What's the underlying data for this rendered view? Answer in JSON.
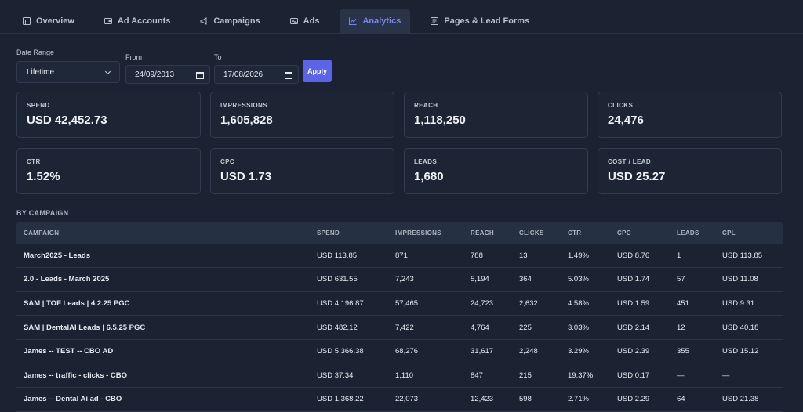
{
  "tabs": [
    {
      "label": "Overview",
      "icon": "grid-icon",
      "active": false
    },
    {
      "label": "Ad Accounts",
      "icon": "wallet-icon",
      "active": false
    },
    {
      "label": "Campaigns",
      "icon": "megaphone-icon",
      "active": false
    },
    {
      "label": "Ads",
      "icon": "image-icon",
      "active": false
    },
    {
      "label": "Analytics",
      "icon": "chart-icon",
      "active": true
    },
    {
      "label": "Pages & Lead Forms",
      "icon": "form-icon",
      "active": false
    }
  ],
  "filters": {
    "date_range_label": "Date Range",
    "date_range_value": "Lifetime",
    "from_label": "From",
    "from_value": "24/09/2013",
    "to_label": "To",
    "to_value": "17/08/2026",
    "apply_label": "Apply"
  },
  "cards": [
    {
      "label": "SPEND",
      "value": "USD 42,452.73"
    },
    {
      "label": "IMPRESSIONS",
      "value": "1,605,828"
    },
    {
      "label": "REACH",
      "value": "1,118,250"
    },
    {
      "label": "CLICKS",
      "value": "24,476"
    },
    {
      "label": "CTR",
      "value": "1.52%"
    },
    {
      "label": "CPC",
      "value": "USD 1.73"
    },
    {
      "label": "LEADS",
      "value": "1,680"
    },
    {
      "label": "COST / LEAD",
      "value": "USD 25.27"
    }
  ],
  "section_title": "BY CAMPAIGN",
  "table": {
    "columns": [
      "CAMPAIGN",
      "SPEND",
      "IMPRESSIONS",
      "REACH",
      "CLICKS",
      "CTR",
      "CPC",
      "LEADS",
      "CPL"
    ],
    "rows": [
      [
        "March2025 - Leads",
        "USD 113.85",
        "871",
        "788",
        "13",
        "1.49%",
        "USD 8.76",
        "1",
        "USD 113.85"
      ],
      [
        "2.0 - Leads - March 2025",
        "USD 631.55",
        "7,243",
        "5,194",
        "364",
        "5.03%",
        "USD 1.74",
        "57",
        "USD 11.08"
      ],
      [
        "SAM | TOF Leads | 4.2.25 PGC",
        "USD 4,196.87",
        "57,465",
        "24,723",
        "2,632",
        "4.58%",
        "USD 1.59",
        "451",
        "USD 9.31"
      ],
      [
        "SAM | DentalAI Leads | 6.5.25 PGC",
        "USD 482.12",
        "7,422",
        "4,764",
        "225",
        "3.03%",
        "USD 2.14",
        "12",
        "USD 40.18"
      ],
      [
        "James -- TEST -- CBO AD",
        "USD 5,366.38",
        "68,276",
        "31,617",
        "2,248",
        "3.29%",
        "USD 2.39",
        "355",
        "USD 15.12"
      ],
      [
        "James -- traffic - clicks - CBO",
        "USD 37.34",
        "1,110",
        "847",
        "215",
        "19.37%",
        "USD 0.17",
        "—",
        "—"
      ],
      [
        "James -- Dental Ai ad - CBO",
        "USD 1,368.22",
        "22,073",
        "12,423",
        "598",
        "2.71%",
        "USD 2.29",
        "64",
        "USD 21.38"
      ]
    ]
  }
}
